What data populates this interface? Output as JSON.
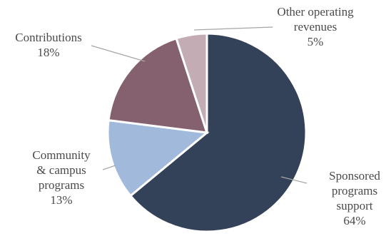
{
  "chart_data": {
    "type": "pie",
    "slices": [
      {
        "label_lines": [
          "Sponsored",
          "programs",
          "support"
        ],
        "pct_label": "64%",
        "value": 64,
        "color": "#344259"
      },
      {
        "label_lines": [
          "Community",
          "& campus",
          "programs"
        ],
        "pct_label": "13%",
        "value": 13,
        "color": "#a1badb"
      },
      {
        "label_lines": [
          "Contributions"
        ],
        "pct_label": "18%",
        "value": 18,
        "color": "#85616f"
      },
      {
        "label_lines": [
          "Other operating",
          "revenues"
        ],
        "pct_label": "5%",
        "value": 5,
        "color": "#c4acb5"
      }
    ]
  }
}
